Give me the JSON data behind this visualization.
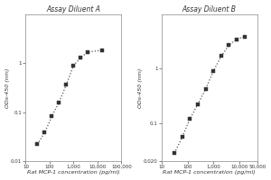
{
  "left": {
    "title": "Assay Diluent A",
    "x": [
      31.25,
      62.5,
      125,
      250,
      500,
      1000,
      2000,
      4000,
      16000
    ],
    "y": [
      0.022,
      0.038,
      0.082,
      0.16,
      0.36,
      0.9,
      1.3,
      1.7,
      1.85
    ],
    "xlim": [
      10,
      100000
    ],
    "ylim": [
      0.01,
      10
    ],
    "xticks": [
      10,
      100,
      1000,
      10000,
      100000
    ],
    "xtick_labels": [
      "10",
      "100",
      "1,000",
      "10,000",
      "100,000"
    ],
    "yticks": [
      0.01,
      0.1,
      1
    ],
    "ytick_labels": [
      "0.01",
      "0.1",
      "1"
    ]
  },
  "right": {
    "title": "Assay Diluent B",
    "x": [
      31.25,
      62.5,
      125,
      250,
      500,
      1000,
      2000,
      4000,
      8000,
      16000
    ],
    "y": [
      0.028,
      0.055,
      0.12,
      0.22,
      0.42,
      0.9,
      1.7,
      2.7,
      3.5,
      3.9
    ],
    "xlim": [
      10,
      50000
    ],
    "ylim": [
      0.02,
      10
    ],
    "xticks": [
      10,
      100,
      1000,
      10000,
      50000
    ],
    "xtick_labels": [
      "10",
      "100",
      "1,000",
      "10,000",
      "50,000"
    ],
    "yticks": [
      0.02,
      0.1,
      1
    ],
    "ytick_labels": [
      "0.020",
      "0.1",
      "1"
    ]
  },
  "ylabel": "ODs-450 (nm)",
  "xlabel": "Rat MCP-1 concentration (pg/ml)",
  "bg_color": "#ffffff",
  "plot_bg_color": "#ffffff",
  "line_color": "#555555",
  "marker_color": "#333333",
  "title_fontsize": 5.5,
  "label_fontsize": 4.5,
  "tick_fontsize": 4.0
}
